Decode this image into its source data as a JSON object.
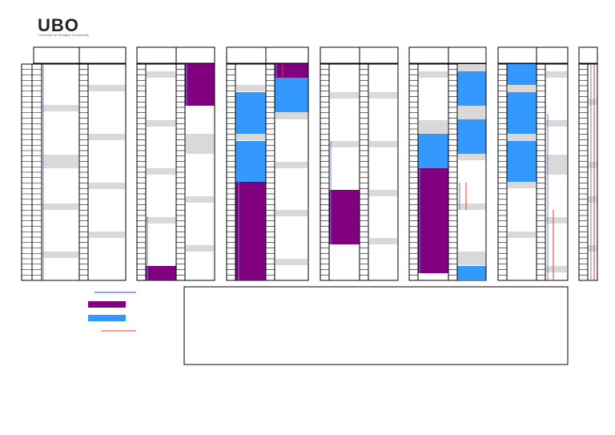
{
  "header": {
    "logo": "UBO",
    "subtitle": "Université de Bretagne Occidentale"
  }
}
